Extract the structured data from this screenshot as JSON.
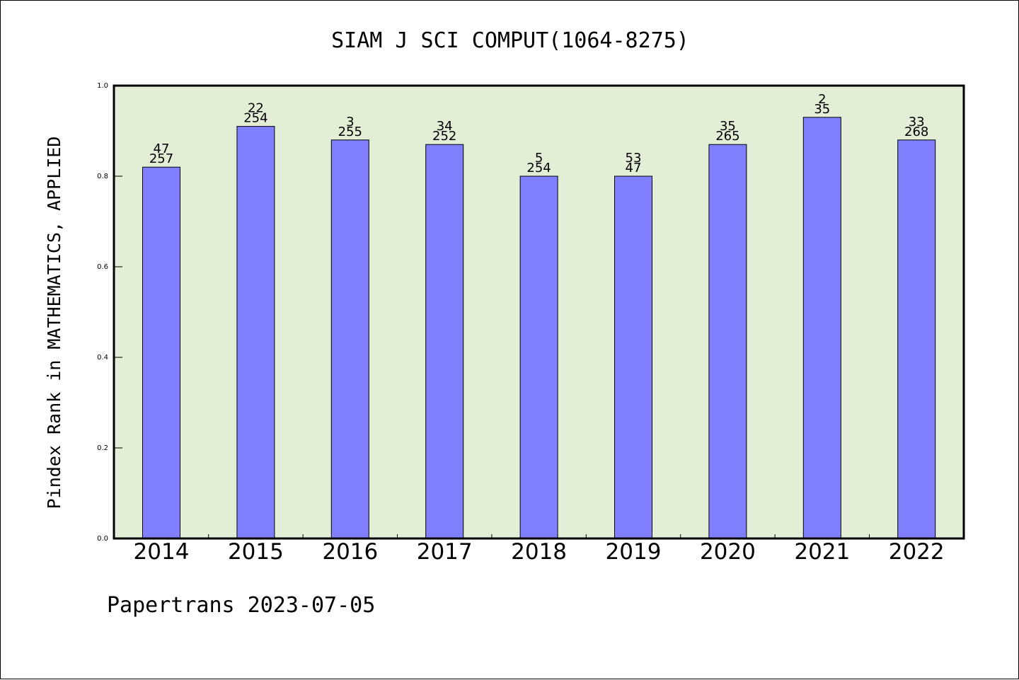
{
  "chart_data": {
    "type": "bar",
    "title": "SIAM J SCI COMPUT(1064-8275)",
    "xlabel": "",
    "ylabel": "Pindex Rank in MATHEMATICS, APPLIED",
    "ylim": [
      0,
      1.0
    ],
    "yticks": [
      "0.0",
      "0.2",
      "0.4",
      "0.6",
      "0.8",
      "1.0"
    ],
    "categories": [
      "2014",
      "2015",
      "2016",
      "2017",
      "2018",
      "2019",
      "2020",
      "2021",
      "2022"
    ],
    "values": [
      0.82,
      0.91,
      0.88,
      0.87,
      0.8,
      0.8,
      0.87,
      0.93,
      0.88
    ],
    "labels_top": [
      "47",
      "22",
      "3",
      "34",
      "5",
      "53",
      "35",
      "2",
      "33"
    ],
    "labels_bottom": [
      "257",
      "254",
      "255",
      "252",
      "254",
      "47",
      "265",
      "35",
      "268"
    ],
    "bar_color": "#8080ff",
    "plot_background": "#e2efd6",
    "grid": false,
    "legend": "none"
  },
  "footer": "Papertrans 2023-07-05"
}
